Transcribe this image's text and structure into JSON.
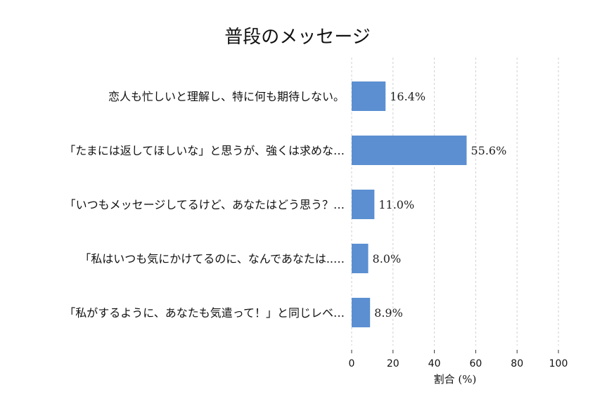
{
  "chart_data": {
    "type": "bar",
    "orientation": "horizontal",
    "title": "普段のメッセージ",
    "xlabel": "割合 (%)",
    "ylabel": "",
    "xlim": [
      0,
      100
    ],
    "xticks": [
      0,
      20,
      40,
      60,
      80,
      100
    ],
    "grid": "x-dashed",
    "categories": [
      "恋人も忙しいと理解し、特に何も期待しない。",
      "「たまには返してほしいな」と思うが、強くは求めな…",
      "「いつもメッセージしてるけど、あなたはどう思う？…",
      "「私はいつも気にかけてるのに、なんであなたは..…",
      "「私がするように、あなたも気遣って！」と同じレベ…"
    ],
    "values": [
      16.4,
      55.6,
      11.0,
      8.0,
      8.9
    ],
    "value_labels": [
      "16.4%",
      "55.6%",
      "11.0%",
      "8.0%",
      "8.9%"
    ],
    "bar_color": "#5b8fd1"
  }
}
